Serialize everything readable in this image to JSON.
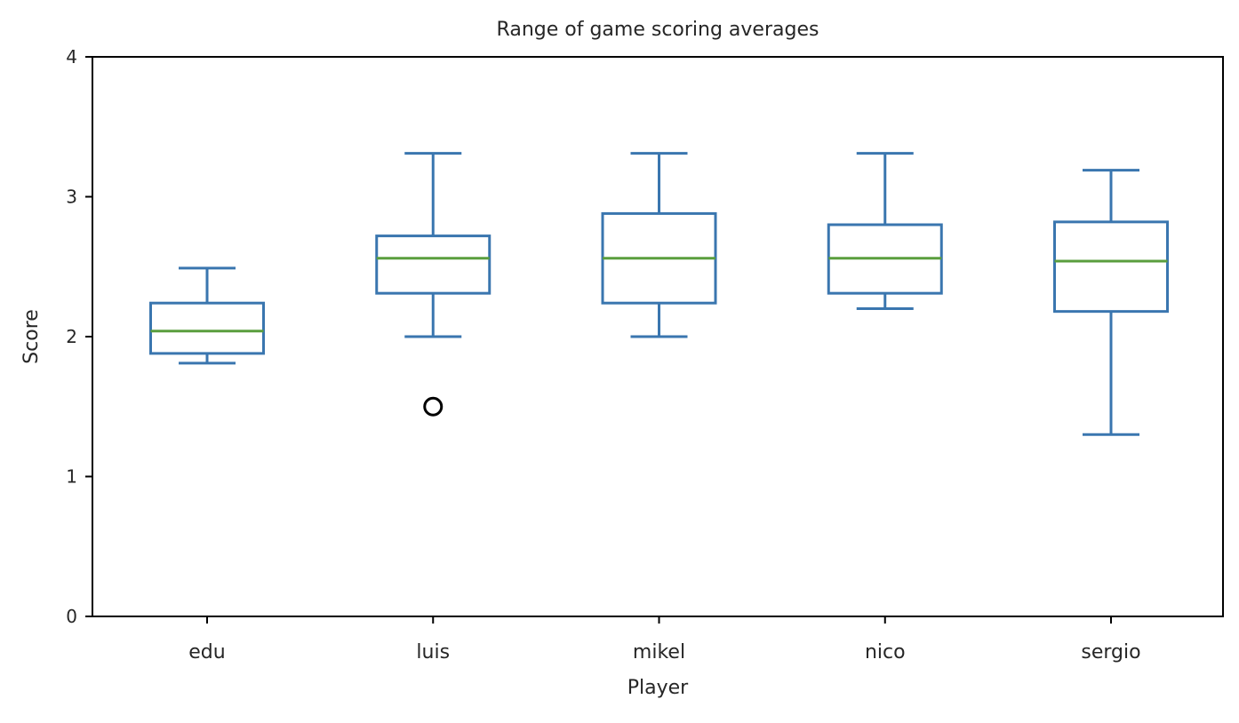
{
  "chart_data": {
    "type": "box",
    "title": "Range of game scoring averages",
    "xlabel": "Player",
    "ylabel": "Score",
    "ylim": [
      0,
      4
    ],
    "yticks": [
      0,
      1,
      2,
      3,
      4
    ],
    "grid": false,
    "categories": [
      "edu",
      "luis",
      "mikel",
      "nico",
      "sergio"
    ],
    "boxes": [
      {
        "category": "edu",
        "whisker_low": 1.81,
        "q1": 1.88,
        "median": 2.04,
        "q3": 2.24,
        "whisker_high": 2.49,
        "outliers": []
      },
      {
        "category": "luis",
        "whisker_low": 2.0,
        "q1": 2.31,
        "median": 2.56,
        "q3": 2.72,
        "whisker_high": 3.31,
        "outliers": [
          1.5
        ]
      },
      {
        "category": "mikel",
        "whisker_low": 2.0,
        "q1": 2.24,
        "median": 2.56,
        "q3": 2.88,
        "whisker_high": 3.31,
        "outliers": []
      },
      {
        "category": "nico",
        "whisker_low": 2.2,
        "q1": 2.31,
        "median": 2.56,
        "q3": 2.8,
        "whisker_high": 3.31,
        "outliers": []
      },
      {
        "category": "sergio",
        "whisker_low": 1.3,
        "q1": 2.18,
        "median": 2.54,
        "q3": 2.82,
        "whisker_high": 3.19,
        "outliers": []
      }
    ],
    "colors": {
      "box": "#3a76af",
      "median": "#5a9e3e",
      "outlier": "#000000",
      "axis": "#000000"
    }
  }
}
